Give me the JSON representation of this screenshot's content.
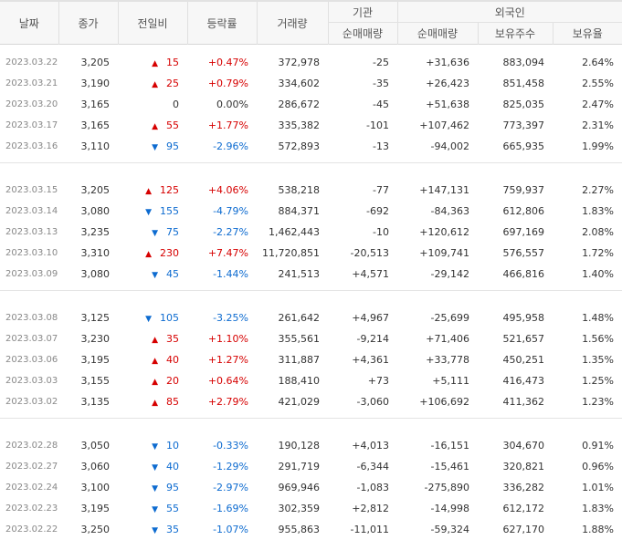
{
  "header": {
    "date": "날짜",
    "close": "종가",
    "change": "전일비",
    "rate": "등락률",
    "volume": "거래량",
    "institution": "기관",
    "inst_net": "순매매량",
    "foreign": "외국인",
    "foreign_net": "순매매량",
    "foreign_holding": "보유주수",
    "foreign_ratio": "보유율"
  },
  "groups": [
    {
      "rows": [
        {
          "date": "2023.03.22",
          "close": "3,205",
          "dir": "up",
          "change": "15",
          "rate": "+0.47%",
          "volume": "372,978",
          "inst": "-25",
          "foreign": "+31,636",
          "holding": "883,094",
          "ratio": "2.64%"
        },
        {
          "date": "2023.03.21",
          "close": "3,190",
          "dir": "up",
          "change": "25",
          "rate": "+0.79%",
          "volume": "334,602",
          "inst": "-35",
          "foreign": "+26,423",
          "holding": "851,458",
          "ratio": "2.55%"
        },
        {
          "date": "2023.03.20",
          "close": "3,165",
          "dir": "flat",
          "change": "0",
          "rate": "0.00%",
          "volume": "286,672",
          "inst": "-45",
          "foreign": "+51,638",
          "holding": "825,035",
          "ratio": "2.47%"
        },
        {
          "date": "2023.03.17",
          "close": "3,165",
          "dir": "up",
          "change": "55",
          "rate": "+1.77%",
          "volume": "335,382",
          "inst": "-101",
          "foreign": "+107,462",
          "holding": "773,397",
          "ratio": "2.31%"
        },
        {
          "date": "2023.03.16",
          "close": "3,110",
          "dir": "down",
          "change": "95",
          "rate": "-2.96%",
          "volume": "572,893",
          "inst": "-13",
          "foreign": "-94,002",
          "holding": "665,935",
          "ratio": "1.99%"
        }
      ]
    },
    {
      "rows": [
        {
          "date": "2023.03.15",
          "close": "3,205",
          "dir": "up",
          "change": "125",
          "rate": "+4.06%",
          "volume": "538,218",
          "inst": "-77",
          "foreign": "+147,131",
          "holding": "759,937",
          "ratio": "2.27%"
        },
        {
          "date": "2023.03.14",
          "close": "3,080",
          "dir": "down",
          "change": "155",
          "rate": "-4.79%",
          "volume": "884,371",
          "inst": "-692",
          "foreign": "-84,363",
          "holding": "612,806",
          "ratio": "1.83%"
        },
        {
          "date": "2023.03.13",
          "close": "3,235",
          "dir": "down",
          "change": "75",
          "rate": "-2.27%",
          "volume": "1,462,443",
          "inst": "-10",
          "foreign": "+120,612",
          "holding": "697,169",
          "ratio": "2.08%"
        },
        {
          "date": "2023.03.10",
          "close": "3,310",
          "dir": "up",
          "change": "230",
          "rate": "+7.47%",
          "volume": "11,720,851",
          "inst": "-20,513",
          "foreign": "+109,741",
          "holding": "576,557",
          "ratio": "1.72%"
        },
        {
          "date": "2023.03.09",
          "close": "3,080",
          "dir": "down",
          "change": "45",
          "rate": "-1.44%",
          "volume": "241,513",
          "inst": "+4,571",
          "foreign": "-29,142",
          "holding": "466,816",
          "ratio": "1.40%"
        }
      ]
    },
    {
      "rows": [
        {
          "date": "2023.03.08",
          "close": "3,125",
          "dir": "down",
          "change": "105",
          "rate": "-3.25%",
          "volume": "261,642",
          "inst": "+4,967",
          "foreign": "-25,699",
          "holding": "495,958",
          "ratio": "1.48%"
        },
        {
          "date": "2023.03.07",
          "close": "3,230",
          "dir": "up",
          "change": "35",
          "rate": "+1.10%",
          "volume": "355,561",
          "inst": "-9,214",
          "foreign": "+71,406",
          "holding": "521,657",
          "ratio": "1.56%"
        },
        {
          "date": "2023.03.06",
          "close": "3,195",
          "dir": "up",
          "change": "40",
          "rate": "+1.27%",
          "volume": "311,887",
          "inst": "+4,361",
          "foreign": "+33,778",
          "holding": "450,251",
          "ratio": "1.35%"
        },
        {
          "date": "2023.03.03",
          "close": "3,155",
          "dir": "up",
          "change": "20",
          "rate": "+0.64%",
          "volume": "188,410",
          "inst": "+73",
          "foreign": "+5,111",
          "holding": "416,473",
          "ratio": "1.25%"
        },
        {
          "date": "2023.03.02",
          "close": "3,135",
          "dir": "up",
          "change": "85",
          "rate": "+2.79%",
          "volume": "421,029",
          "inst": "-3,060",
          "foreign": "+106,692",
          "holding": "411,362",
          "ratio": "1.23%"
        }
      ]
    },
    {
      "rows": [
        {
          "date": "2023.02.28",
          "close": "3,050",
          "dir": "down",
          "change": "10",
          "rate": "-0.33%",
          "volume": "190,128",
          "inst": "+4,013",
          "foreign": "-16,151",
          "holding": "304,670",
          "ratio": "0.91%"
        },
        {
          "date": "2023.02.27",
          "close": "3,060",
          "dir": "down",
          "change": "40",
          "rate": "-1.29%",
          "volume": "291,719",
          "inst": "-6,344",
          "foreign": "-15,461",
          "holding": "320,821",
          "ratio": "0.96%"
        },
        {
          "date": "2023.02.24",
          "close": "3,100",
          "dir": "down",
          "change": "95",
          "rate": "-2.97%",
          "volume": "969,946",
          "inst": "-1,083",
          "foreign": "-275,890",
          "holding": "336,282",
          "ratio": "1.01%"
        },
        {
          "date": "2023.02.23",
          "close": "3,195",
          "dir": "down",
          "change": "55",
          "rate": "-1.69%",
          "volume": "302,359",
          "inst": "+2,812",
          "foreign": "-14,998",
          "holding": "612,172",
          "ratio": "1.83%"
        },
        {
          "date": "2023.02.22",
          "close": "3,250",
          "dir": "down",
          "change": "35",
          "rate": "-1.07%",
          "volume": "955,863",
          "inst": "-11,011",
          "foreign": "-59,324",
          "holding": "627,170",
          "ratio": "1.88%"
        }
      ]
    }
  ]
}
